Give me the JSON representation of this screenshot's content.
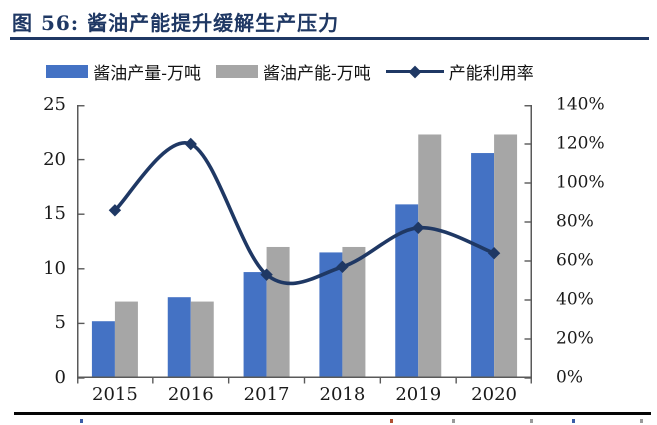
{
  "title": "图 56: 酱油产能提升缓解生产压力",
  "colors": {
    "bar_output": "#4472C4",
    "bar_capacity": "#A6A6A6",
    "line": "#1F3864",
    "title": "#1F3864",
    "axis": "#595959",
    "rule_top": "#1F3864",
    "rule_bottom": "#050505"
  },
  "legend": [
    {
      "label": "酱油产量-万吨",
      "type": "bar",
      "color": "#4472C4"
    },
    {
      "label": "酱油产能-万吨",
      "type": "bar",
      "color": "#A6A6A6"
    },
    {
      "label": "产能利用率",
      "type": "line",
      "color": "#1F3864"
    }
  ],
  "chart_data": {
    "type": "bar",
    "subtype": "grouped-bars-with-line",
    "title": "酱油产能提升缓解生产压力",
    "categories": [
      "2015",
      "2016",
      "2017",
      "2018",
      "2019",
      "2020"
    ],
    "series": [
      {
        "name": "酱油产量-万吨",
        "type": "bar",
        "axis": "left",
        "color": "#4472C4",
        "values": [
          5.2,
          7.4,
          9.7,
          11.5,
          15.9,
          20.6
        ]
      },
      {
        "name": "酱油产能-万吨",
        "type": "bar",
        "axis": "left",
        "color": "#A6A6A6",
        "values": [
          7.0,
          7.0,
          12.0,
          12.0,
          22.3,
          22.3
        ]
      },
      {
        "name": "产能利用率",
        "type": "line",
        "axis": "right",
        "color": "#1F3864",
        "values_pct": [
          86,
          120,
          53,
          57,
          77,
          64
        ]
      }
    ],
    "left_axis": {
      "min": 0,
      "max": 25,
      "ticks": [
        "0",
        "5",
        "10",
        "15",
        "20",
        "25"
      ]
    },
    "right_axis": {
      "min": 0,
      "max": 140,
      "ticks": [
        "0%",
        "20%",
        "40%",
        "60%",
        "80%",
        "100%",
        "120%",
        "140%"
      ]
    },
    "grid": false,
    "legend_position": "top",
    "line_style": "smooth",
    "marker": "diamond"
  }
}
